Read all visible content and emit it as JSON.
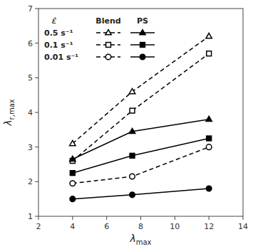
{
  "chart_data": {
    "type": "line",
    "color": "black",
    "x": [
      4,
      7.5,
      12
    ],
    "series": [
      {
        "values": [
          3.1,
          4.6,
          6.2
        ],
        "marker": "triangle-open",
        "line_style": "dashed"
      },
      {
        "values": [
          2.6,
          4.05,
          5.7
        ],
        "marker": "square-open",
        "line_style": "dashed"
      },
      {
        "values": [
          1.95,
          2.15,
          3.0
        ],
        "marker": "circle-open",
        "line_style": "dashed"
      },
      {
        "values": [
          2.65,
          3.45,
          3.8
        ],
        "marker": "triangle",
        "line_style": "solid"
      },
      {
        "values": [
          2.25,
          2.75,
          3.25
        ],
        "marker": "square",
        "line_style": "solid"
      },
      {
        "values": [
          1.5,
          1.62,
          1.8
        ],
        "marker": "circle",
        "line_style": "solid"
      }
    ],
    "x_label": "λmax",
    "y_label": "λr,max",
    "xlim": [
      2,
      14
    ],
    "ylim": [
      1,
      7
    ],
    "xticks": [
      2,
      4,
      6,
      8,
      10,
      12,
      14
    ],
    "yticks": [
      1,
      2,
      3,
      4,
      5,
      6,
      7
    ],
    "grid": false,
    "legend": "upper left",
    "legend_title": "ε̇",
    "legend_columns": [
      "Blend",
      "PS"
    ],
    "legend_rows": [
      "0.5 s⁻¹",
      "0.1 s⁻¹",
      "0.01 s⁻¹"
    ]
  }
}
